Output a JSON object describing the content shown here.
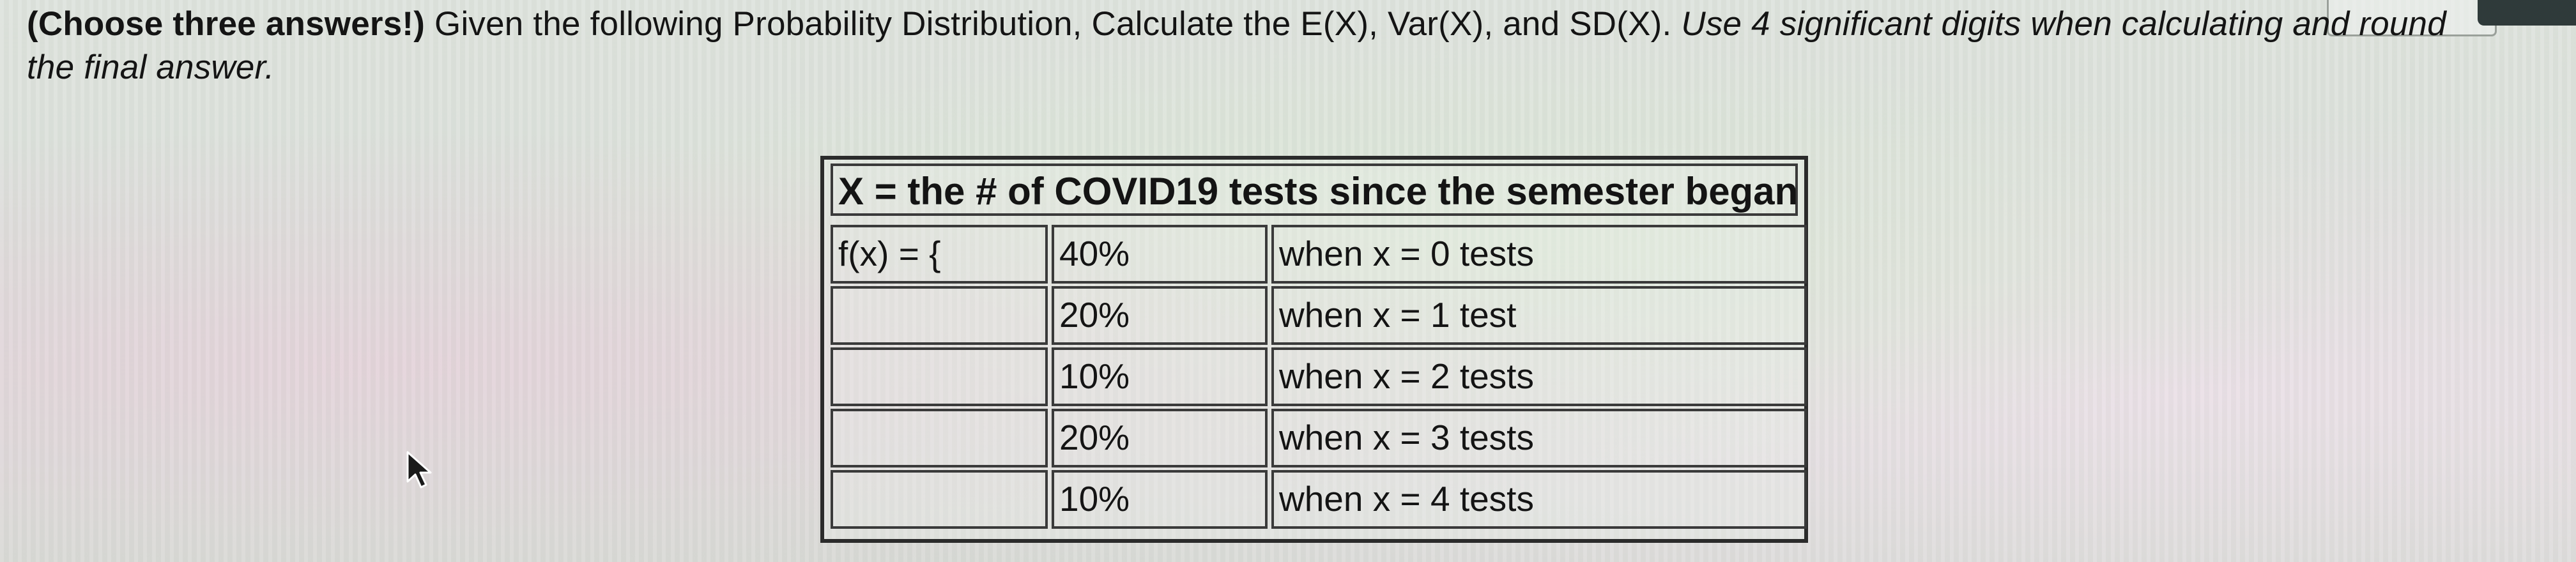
{
  "question": {
    "lead_bold": "(Choose three answers!)",
    "text": " Given the following Probability Distribution, Calculate the E(X), Var(X), and SD(X). ",
    "italic": "Use 4 significant digits when calculating and round the final answer."
  },
  "table": {
    "title": "X = the # of COVID19 tests since the semester began",
    "rows": [
      {
        "label": "f(x) = {",
        "prob": "40%",
        "desc": "when x = 0 tests"
      },
      {
        "label": "",
        "prob": "20%",
        "desc": "when x = 1 test"
      },
      {
        "label": "",
        "prob": "10%",
        "desc": "when x = 2  tests"
      },
      {
        "label": "",
        "prob": "20%",
        "desc": "when x = 3  tests"
      },
      {
        "label": "",
        "prob": "10%",
        "desc": "when x = 4  tests"
      }
    ]
  },
  "icons": {
    "cursor": "mouse-pointer-icon"
  },
  "colors": {
    "text": "#141414",
    "table_border": "#2b2b2b"
  }
}
